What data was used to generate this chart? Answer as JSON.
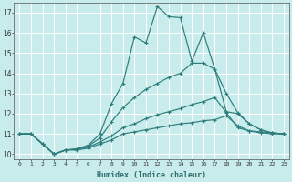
{
  "xlabel": "Humidex (Indice chaleur)",
  "bg_color": "#c8ecec",
  "grid_color": "#ffffff",
  "line_color": "#2d7d7d",
  "xlim": [
    -0.5,
    23.5
  ],
  "ylim": [
    9.75,
    17.5
  ],
  "yticks": [
    10,
    11,
    12,
    13,
    14,
    15,
    16,
    17
  ],
  "xticks": [
    0,
    1,
    2,
    3,
    4,
    5,
    6,
    7,
    8,
    9,
    10,
    11,
    12,
    13,
    14,
    15,
    16,
    17,
    18,
    19,
    20,
    21,
    22,
    23
  ],
  "series": [
    [
      11.0,
      11.0,
      10.5,
      10.0,
      10.2,
      10.2,
      10.3,
      10.5,
      10.7,
      11.0,
      11.1,
      11.2,
      11.3,
      11.4,
      11.5,
      11.55,
      11.65,
      11.7,
      11.9,
      11.4,
      11.15,
      11.05,
      11.0,
      11.0
    ],
    [
      11.0,
      11.0,
      10.5,
      10.0,
      10.2,
      10.25,
      10.35,
      10.6,
      10.9,
      11.3,
      11.5,
      11.75,
      11.95,
      12.1,
      12.25,
      12.45,
      12.6,
      12.8,
      12.05,
      11.3,
      11.15,
      11.1,
      11.05,
      11.0
    ],
    [
      11.0,
      11.0,
      10.5,
      10.0,
      10.2,
      10.25,
      10.4,
      10.8,
      11.6,
      12.3,
      12.8,
      13.2,
      13.5,
      13.8,
      14.0,
      14.5,
      14.5,
      14.2,
      13.0,
      12.05,
      11.5,
      11.2,
      11.05,
      11.0
    ],
    [
      11.0,
      11.0,
      10.5,
      10.0,
      10.2,
      10.25,
      10.45,
      11.0,
      12.5,
      13.5,
      15.8,
      15.5,
      17.3,
      16.8,
      16.75,
      14.6,
      16.0,
      14.2,
      12.1,
      12.0,
      11.5,
      11.2,
      11.05,
      11.0
    ]
  ]
}
